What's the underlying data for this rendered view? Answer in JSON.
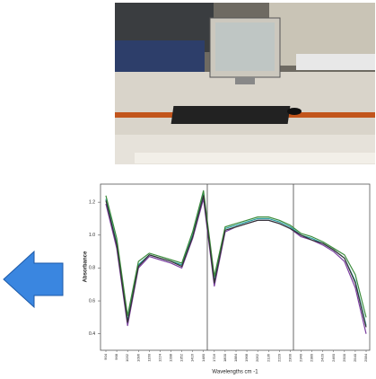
{
  "chart_data": {
    "type": "line",
    "y_label": "Absorbance",
    "x_label": "Wavelengths cm -1",
    "categories": [
      "904",
      "968",
      "1032",
      "1096",
      "1160",
      "1224",
      "1288",
      "1352",
      "1416",
      "1480",
      "1716",
      "1800",
      "1884",
      "1968",
      "2052",
      "2136",
      "2220",
      "2300",
      "2340",
      "2380",
      "2420",
      "2460",
      "2500",
      "2540",
      "2584"
    ],
    "series": [
      {
        "color": "#2a9fa0",
        "values": [
          1.22,
          0.95,
          0.48,
          0.82,
          0.88,
          0.86,
          0.84,
          0.82,
          1.0,
          1.25,
          0.72,
          1.04,
          1.06,
          1.08,
          1.1,
          1.1,
          1.08,
          1.05,
          1.0,
          0.98,
          0.95,
          0.91,
          0.86,
          0.72,
          0.45
        ]
      },
      {
        "color": "#7b3fa0",
        "values": [
          1.19,
          0.92,
          0.45,
          0.8,
          0.87,
          0.85,
          0.83,
          0.8,
          0.98,
          1.22,
          0.69,
          1.02,
          1.05,
          1.07,
          1.09,
          1.09,
          1.07,
          1.04,
          0.99,
          0.97,
          0.94,
          0.9,
          0.84,
          0.68,
          0.4
        ]
      },
      {
        "color": "#3c8c3c",
        "values": [
          1.24,
          0.98,
          0.51,
          0.84,
          0.89,
          0.87,
          0.85,
          0.83,
          1.02,
          1.27,
          0.75,
          1.05,
          1.07,
          1.09,
          1.11,
          1.11,
          1.09,
          1.06,
          1.01,
          0.99,
          0.96,
          0.92,
          0.88,
          0.76,
          0.5
        ]
      },
      {
        "color": "#333333",
        "values": [
          1.21,
          0.94,
          0.47,
          0.81,
          0.88,
          0.86,
          0.84,
          0.81,
          0.99,
          1.24,
          0.71,
          1.03,
          1.05,
          1.07,
          1.09,
          1.09,
          1.07,
          1.04,
          1.0,
          0.97,
          0.95,
          0.91,
          0.86,
          0.71,
          0.44
        ]
      }
    ],
    "ylim": [
      0.3,
      1.31
    ],
    "yticks": [
      0.4,
      0.6,
      0.8,
      {
        "value": 1,
        "label": "1.0"
      },
      1.2
    ]
  }
}
